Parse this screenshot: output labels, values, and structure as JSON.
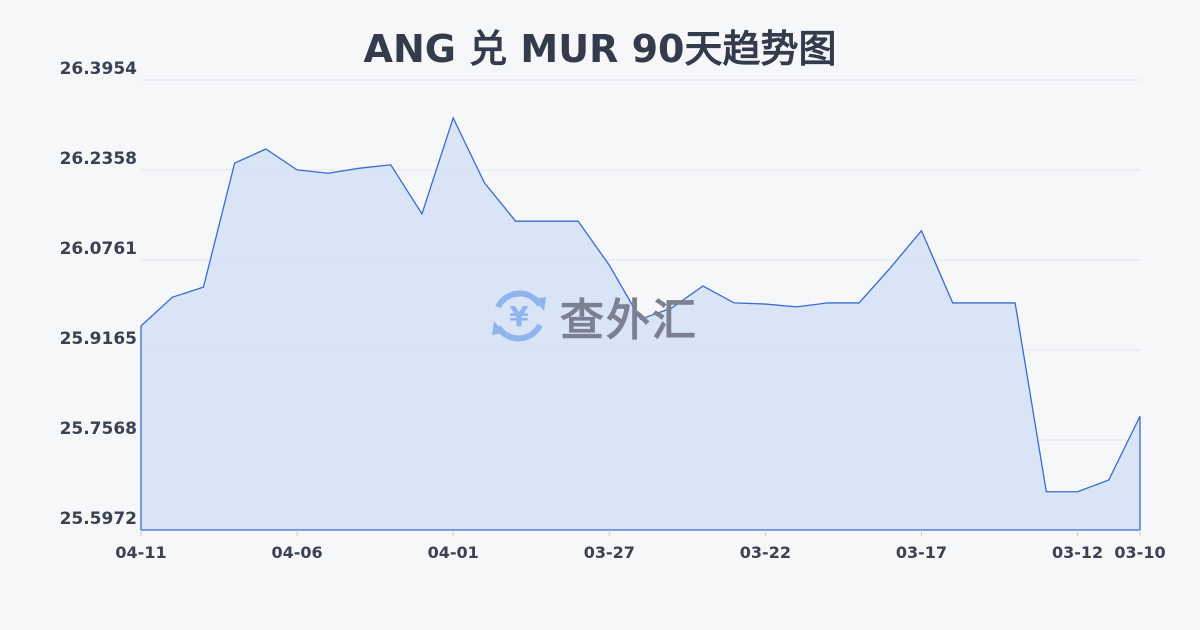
{
  "chart_data": {
    "type": "area",
    "title": "ANG 兑 MUR 90天趋势图",
    "xlabel": "",
    "ylabel": "",
    "x": [
      "04-11",
      "04-10",
      "04-09",
      "04-08",
      "04-07",
      "04-06",
      "04-05",
      "04-04",
      "04-03",
      "04-02",
      "04-01",
      "03-31",
      "03-30",
      "03-29",
      "03-28",
      "03-27",
      "03-26",
      "03-25",
      "03-24",
      "03-23",
      "03-22",
      "03-21",
      "03-20",
      "03-19",
      "03-18",
      "03-17",
      "03-16",
      "03-15",
      "03-14",
      "03-13",
      "03-12",
      "03-11",
      "03-10"
    ],
    "values": [
      25.959,
      26.01,
      26.028,
      26.248,
      26.273,
      26.236,
      26.23,
      26.239,
      26.245,
      26.158,
      26.328,
      26.213,
      26.145,
      26.145,
      26.145,
      26.067,
      25.971,
      25.991,
      26.03,
      26.0,
      25.998,
      25.993,
      26.0,
      26.0,
      26.062,
      26.128,
      26.0,
      26.0,
      26.0,
      25.665,
      25.665,
      25.686,
      25.799
    ],
    "ylim": [
      25.5972,
      26.3954
    ],
    "yticks": [
      "26.3954",
      "26.2358",
      "26.0761",
      "25.9165",
      "25.7568",
      "25.5972"
    ],
    "xticks": [
      "04-11",
      "04-06",
      "04-01",
      "03-27",
      "03-22",
      "03-17",
      "03-12",
      "03-10"
    ],
    "grid": true,
    "colors": {
      "line": "#3a6bd0",
      "fill": "#d6e1f5",
      "grid": "#e2e5ea"
    }
  },
  "watermark": {
    "text": "查外汇",
    "icon": "yen-exchange-icon"
  }
}
